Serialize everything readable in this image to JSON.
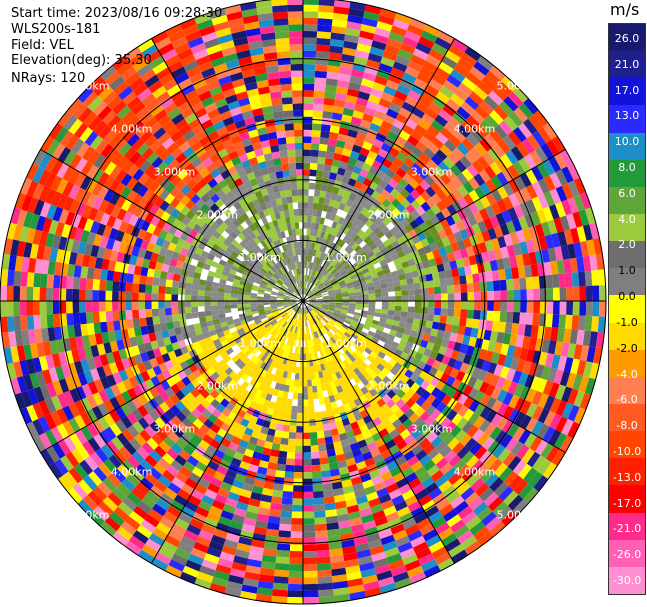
{
  "header": {
    "start_time": "Start time: 2023/08/16 09:28:30",
    "instrument": "WLS200s-181",
    "field": "Field: VEL",
    "elevation": "Elevation(deg): 35.30",
    "nrays": "NRays: 120"
  },
  "chart_data": {
    "type": "heatmap",
    "projection": "polar-ppi",
    "field": "VEL",
    "units": "m/s",
    "elevation_deg": 35.3,
    "n_rays": 120,
    "range_rings_km": [
      1.0,
      2.0,
      3.0,
      4.0,
      5.0
    ],
    "range_labels": [
      "1.00km",
      "2.00km",
      "3.00km",
      "4.00km",
      "5.00km"
    ],
    "max_range_km": 5.0,
    "colorbar": {
      "units": "m/s",
      "colors": [
        "#181a6e",
        "#1f1f8e",
        "#1212d8",
        "#2a2aff",
        "#1e8ec8",
        "#239a3a",
        "#5ea63a",
        "#9bca3c",
        "#6e6e6e",
        "#7f7f7f",
        "#ffff00",
        "#ffdb00",
        "#ff9b00",
        "#ff7f50",
        "#ff5a22",
        "#ff4500",
        "#ff2000",
        "#ff0000",
        "#ff2a8a",
        "#ff5fb4",
        "#ff8fd0"
      ],
      "tick_labels": [
        "26.0",
        "21.0",
        "17.0",
        "13.0",
        "10.0",
        "8.0",
        "6.0",
        "4.0",
        "2.0",
        "1.0",
        "0.0",
        "-1.0",
        "-2.0",
        "-4.0",
        "-6.0",
        "-8.0",
        "-10.0",
        "-13.0",
        "-17.0",
        "-21.0",
        "-26.0",
        "-30.0"
      ],
      "vmin": -30.0,
      "vmax": 30.0
    }
  }
}
